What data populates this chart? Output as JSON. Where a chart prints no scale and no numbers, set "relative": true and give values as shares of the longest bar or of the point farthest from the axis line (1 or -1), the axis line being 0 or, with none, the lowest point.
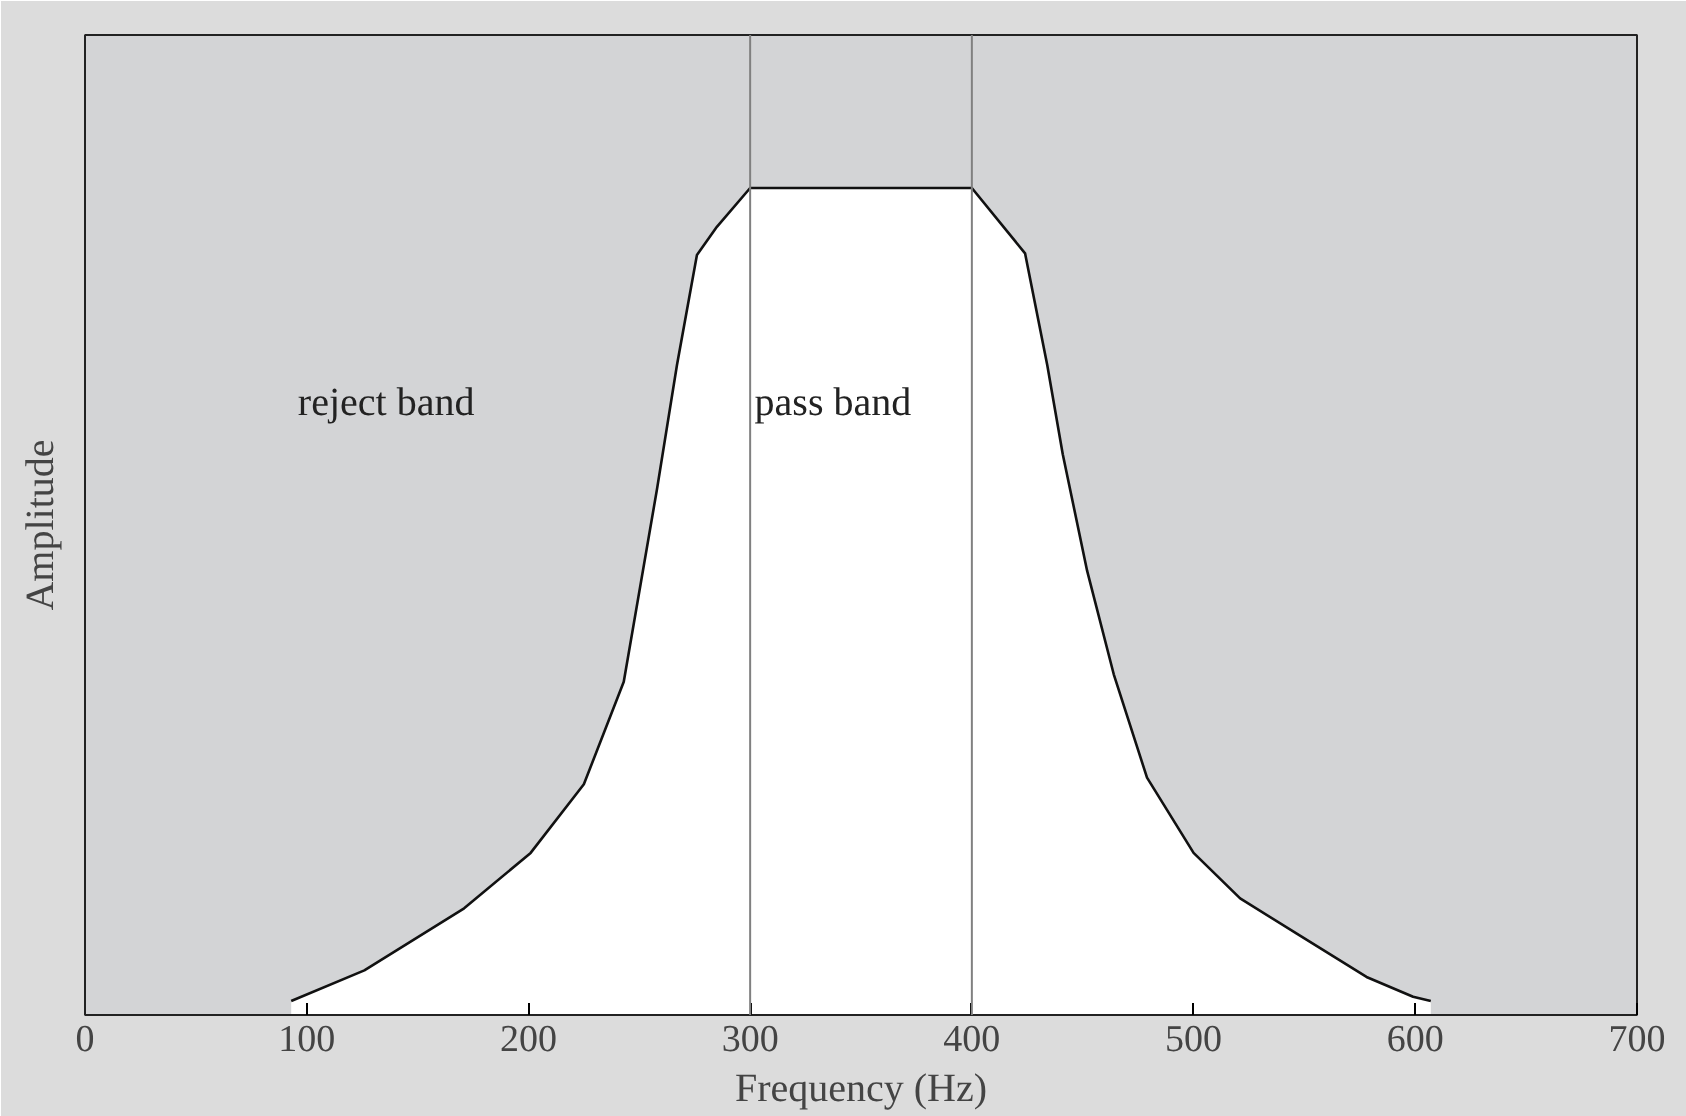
{
  "chart_data": {
    "type": "area",
    "relative": true,
    "xlabel": "Frequency (Hz)",
    "ylabel": "Amplitude",
    "xlim": [
      0,
      700
    ],
    "xticks": [
      0,
      100,
      200,
      300,
      400,
      500,
      600,
      700
    ],
    "tick_labels": "x",
    "grid": false,
    "series": [
      {
        "color": "#ffffff",
        "x": [
          93,
          126,
          171,
          201,
          225,
          243,
          258,
          267,
          276,
          285,
          300,
          400,
          424,
          434,
          441,
          452,
          464,
          479,
          500,
          521,
          548,
          578,
          599,
          607
        ],
        "values": [
          0.017,
          0.054,
          0.129,
          0.196,
          0.279,
          0.403,
          0.636,
          0.786,
          0.919,
          0.953,
          1,
          1,
          0.921,
          0.786,
          0.678,
          0.537,
          0.412,
          0.287,
          0.196,
          0.141,
          0.096,
          0.046,
          0.022,
          0.017
        ]
      }
    ],
    "ref_lines": [
      {
        "axis": "x",
        "value": 300,
        "color": "#808080"
      },
      {
        "axis": "x",
        "value": 400,
        "color": "#808080"
      }
    ],
    "annotations": [
      "reject band",
      "pass band"
    ]
  }
}
